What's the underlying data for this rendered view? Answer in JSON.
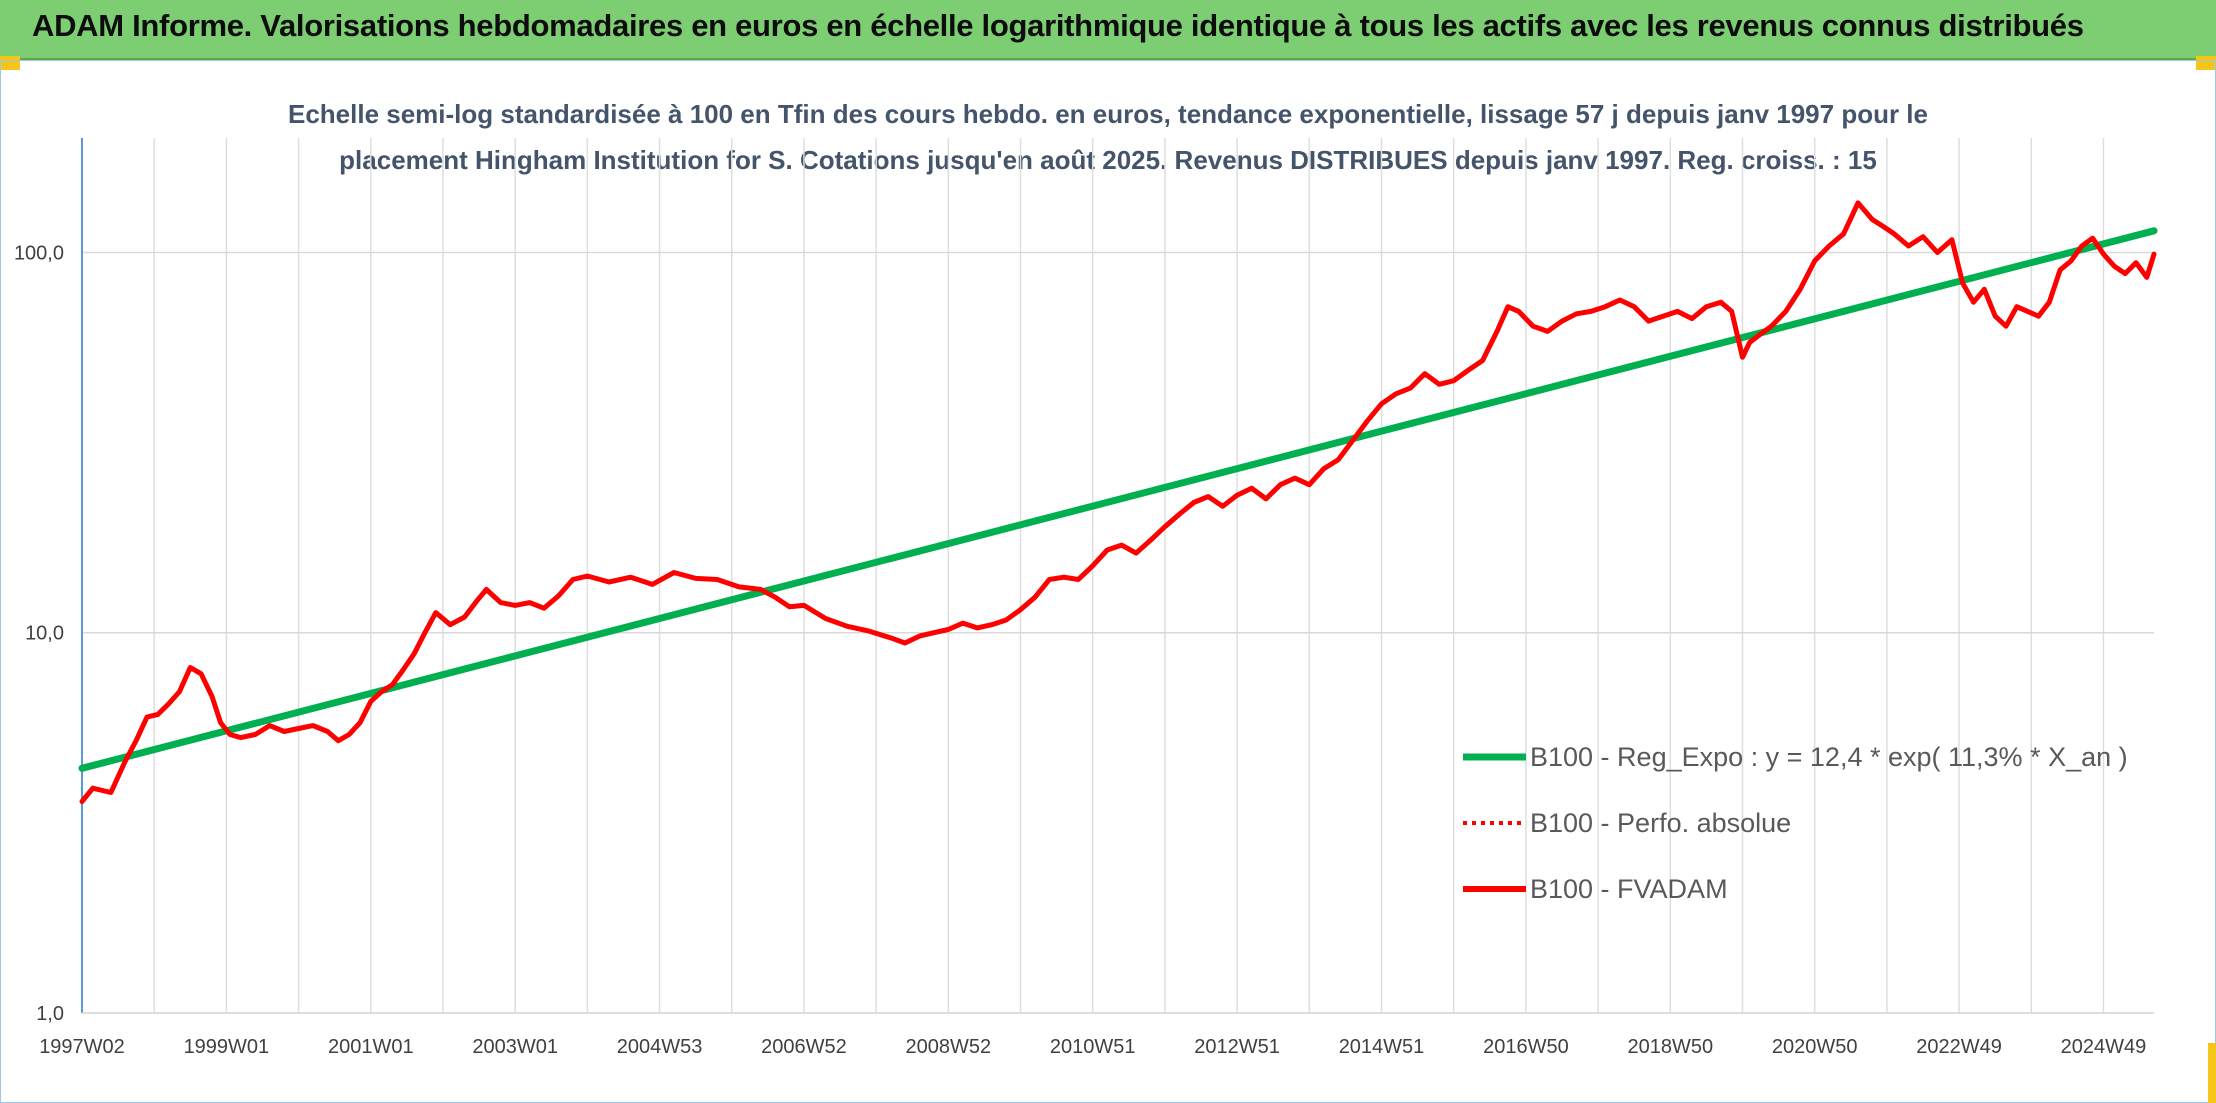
{
  "header": {
    "title": "ADAM Informe. Valorisations hebdomadaires en euros en échelle logarithmique identique à tous les actifs avec les revenus connus distribués"
  },
  "colors": {
    "banner": "#7dcd72",
    "trend": "#00b050",
    "price": "#ff0000",
    "subtitle": "#44546a"
  },
  "chart_data": {
    "type": "line",
    "subtitle_lines": [
      "Echelle semi-log standardisée à 100 en Tfin des cours hebdo. en euros, tendance exponentielle, lissage 57 j depuis janv 1997 pour le",
      "placement Hingham Institution for S. Cotations jusqu'en août 2025. Revenus DISTRIBUES depuis janv 1997. Reg. croiss. : 15"
    ],
    "y_scale": "log",
    "ylim": [
      1,
      200
    ],
    "y_ticks": [
      {
        "value": 1,
        "label": "1,0"
      },
      {
        "value": 10,
        "label": "10,0"
      },
      {
        "value": 100,
        "label": "100,0"
      }
    ],
    "xlim": [
      1997.0,
      2025.7
    ],
    "x_ticks": [
      {
        "value": 1997.0,
        "label": "1997W02"
      },
      {
        "value": 1999.0,
        "label": "1999W01"
      },
      {
        "value": 2001.0,
        "label": "2001W01"
      },
      {
        "value": 2003.0,
        "label": "2003W01"
      },
      {
        "value": 2005.0,
        "label": "2004W53"
      },
      {
        "value": 2007.0,
        "label": "2006W52"
      },
      {
        "value": 2009.0,
        "label": "2008W52"
      },
      {
        "value": 2011.0,
        "label": "2010W51"
      },
      {
        "value": 2013.0,
        "label": "2012W51"
      },
      {
        "value": 2015.0,
        "label": "2014W51"
      },
      {
        "value": 2017.0,
        "label": "2016W50"
      },
      {
        "value": 2019.0,
        "label": "2018W50"
      },
      {
        "value": 2021.0,
        "label": "2020W50"
      },
      {
        "value": 2023.0,
        "label": "2022W49"
      },
      {
        "value": 2025.0,
        "label": "2024W49"
      }
    ],
    "grid": true,
    "legend_position": "right",
    "series": [
      {
        "name": "B100 - Reg_Expo : y = 12,4 * exp( 11,3% *  X_an )",
        "style": "solid-thick",
        "x": [
          1997.0,
          2025.7
        ],
        "values": [
          4.4,
          114
        ]
      },
      {
        "name": "B100 - Perfo. absolue",
        "style": "dotted",
        "x": [],
        "values": []
      },
      {
        "name": "B100 - FVADAM",
        "style": "solid",
        "x": [
          1997.0,
          1997.15,
          1997.4,
          1997.6,
          1997.75,
          1997.9,
          1998.05,
          1998.2,
          1998.35,
          1998.5,
          1998.65,
          1998.8,
          1998.92,
          1999.05,
          1999.2,
          1999.4,
          1999.6,
          1999.8,
          2000.0,
          2000.2,
          2000.4,
          2000.55,
          2000.7,
          2000.85,
          2001.0,
          2001.15,
          2001.3,
          2001.45,
          2001.6,
          2001.75,
          2001.9,
          2002.1,
          2002.3,
          2002.45,
          2002.6,
          2002.8,
          2003.0,
          2003.2,
          2003.4,
          2003.6,
          2003.8,
          2004.0,
          2004.3,
          2004.6,
          2004.9,
          2005.2,
          2005.5,
          2005.8,
          2006.1,
          2006.4,
          2006.6,
          2006.8,
          2007.0,
          2007.3,
          2007.6,
          2007.9,
          2008.2,
          2008.4,
          2008.6,
          2008.8,
          2009.0,
          2009.2,
          2009.4,
          2009.6,
          2009.8,
          2010.0,
          2010.2,
          2010.4,
          2010.6,
          2010.8,
          2011.0,
          2011.2,
          2011.4,
          2011.6,
          2011.8,
          2012.0,
          2012.2,
          2012.4,
          2012.6,
          2012.8,
          2013.0,
          2013.2,
          2013.4,
          2013.6,
          2013.8,
          2014.0,
          2014.2,
          2014.4,
          2014.6,
          2014.8,
          2015.0,
          2015.2,
          2015.4,
          2015.6,
          2015.8,
          2016.0,
          2016.2,
          2016.4,
          2016.6,
          2016.75,
          2016.9,
          2017.1,
          2017.3,
          2017.5,
          2017.7,
          2017.9,
          2018.1,
          2018.3,
          2018.5,
          2018.7,
          2018.9,
          2019.1,
          2019.3,
          2019.5,
          2019.7,
          2019.85,
          2020.0,
          2020.1,
          2020.25,
          2020.4,
          2020.6,
          2020.8,
          2021.0,
          2021.2,
          2021.4,
          2021.6,
          2021.8,
          2021.95,
          2022.1,
          2022.3,
          2022.5,
          2022.7,
          2022.9,
          2023.05,
          2023.2,
          2023.35,
          2023.5,
          2023.65,
          2023.8,
          2023.95,
          2024.1,
          2024.25,
          2024.4,
          2024.55,
          2024.7,
          2024.85,
          2025.0,
          2025.15,
          2025.3,
          2025.45,
          2025.6,
          2025.7
        ],
        "values": [
          3.6,
          3.9,
          3.8,
          4.6,
          5.2,
          6.0,
          6.1,
          6.5,
          7.0,
          8.1,
          7.8,
          6.8,
          5.8,
          5.4,
          5.3,
          5.4,
          5.7,
          5.5,
          5.6,
          5.7,
          5.5,
          5.2,
          5.4,
          5.8,
          6.6,
          7.0,
          7.3,
          8.0,
          8.8,
          10.0,
          11.3,
          10.5,
          11.0,
          12.0,
          13.0,
          12.0,
          11.8,
          12.0,
          11.6,
          12.5,
          13.8,
          14.1,
          13.6,
          14.0,
          13.4,
          14.4,
          13.9,
          13.8,
          13.2,
          13.0,
          12.4,
          11.7,
          11.8,
          10.9,
          10.4,
          10.1,
          9.7,
          9.4,
          9.8,
          10.0,
          10.2,
          10.6,
          10.3,
          10.5,
          10.8,
          11.5,
          12.4,
          13.8,
          14.0,
          13.8,
          15.0,
          16.5,
          17.0,
          16.2,
          17.5,
          19.0,
          20.5,
          22.0,
          22.8,
          21.5,
          23.0,
          24.0,
          22.5,
          24.5,
          25.5,
          24.5,
          27.0,
          28.5,
          32.0,
          36.0,
          40.0,
          42.5,
          44.0,
          48.0,
          45.0,
          46.0,
          49.0,
          52.0,
          62.0,
          72.0,
          70.0,
          64.0,
          62.0,
          66.0,
          69.0,
          70.0,
          72.0,
          75.0,
          72.0,
          66.0,
          68.0,
          70.0,
          67.0,
          72.0,
          74.0,
          70.0,
          53.0,
          58.0,
          61.0,
          64.0,
          70.0,
          80.0,
          95.0,
          104.0,
          112.0,
          135.0,
          122.0,
          117.0,
          112.0,
          104.0,
          110.0,
          100.0,
          108.0,
          83.0,
          74.0,
          80.0,
          68.0,
          64.0,
          72.0,
          70.0,
          68.0,
          74.0,
          90.0,
          95.0,
          104.0,
          109.0,
          99.0,
          92.0,
          88.0,
          94.0,
          86.0,
          99.0
        ]
      }
    ]
  }
}
